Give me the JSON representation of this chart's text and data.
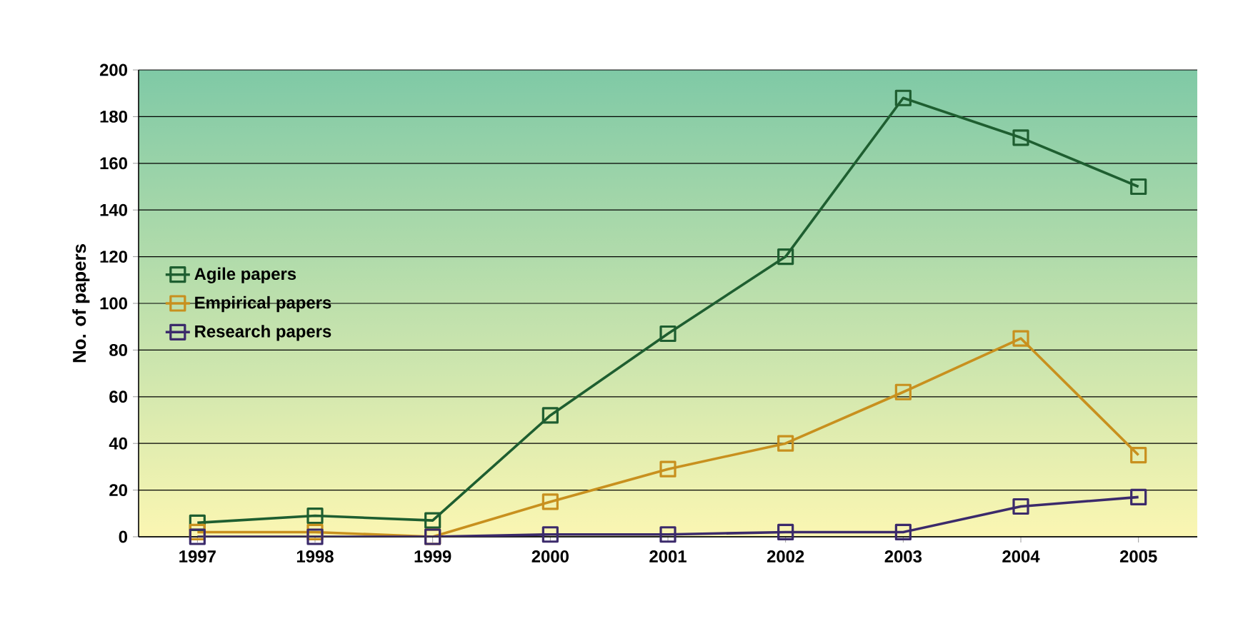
{
  "chart_data": {
    "type": "line",
    "ylabel": "No. of papers",
    "categories": [
      "1997",
      "1998",
      "1999",
      "2000",
      "2001",
      "2002",
      "2003",
      "2004",
      "2005"
    ],
    "series": [
      {
        "name": "Agile papers",
        "color": "#1e5e30",
        "values": [
          6,
          9,
          7,
          52,
          87,
          120,
          188,
          171,
          150
        ]
      },
      {
        "name": "Empirical papers",
        "color": "#c8901e",
        "values": [
          2,
          2,
          0,
          15,
          29,
          40,
          62,
          85,
          35
        ]
      },
      {
        "name": "Research papers",
        "color": "#3b2a6b",
        "values": [
          0,
          0,
          0,
          1,
          1,
          2,
          2,
          13,
          17
        ]
      }
    ],
    "ylim": [
      0,
      200
    ],
    "yticks": [
      0,
      20,
      40,
      60,
      80,
      100,
      120,
      140,
      160,
      180,
      200
    ],
    "grid": "y",
    "legend": "left",
    "marker": "square",
    "line_style": "solid"
  }
}
